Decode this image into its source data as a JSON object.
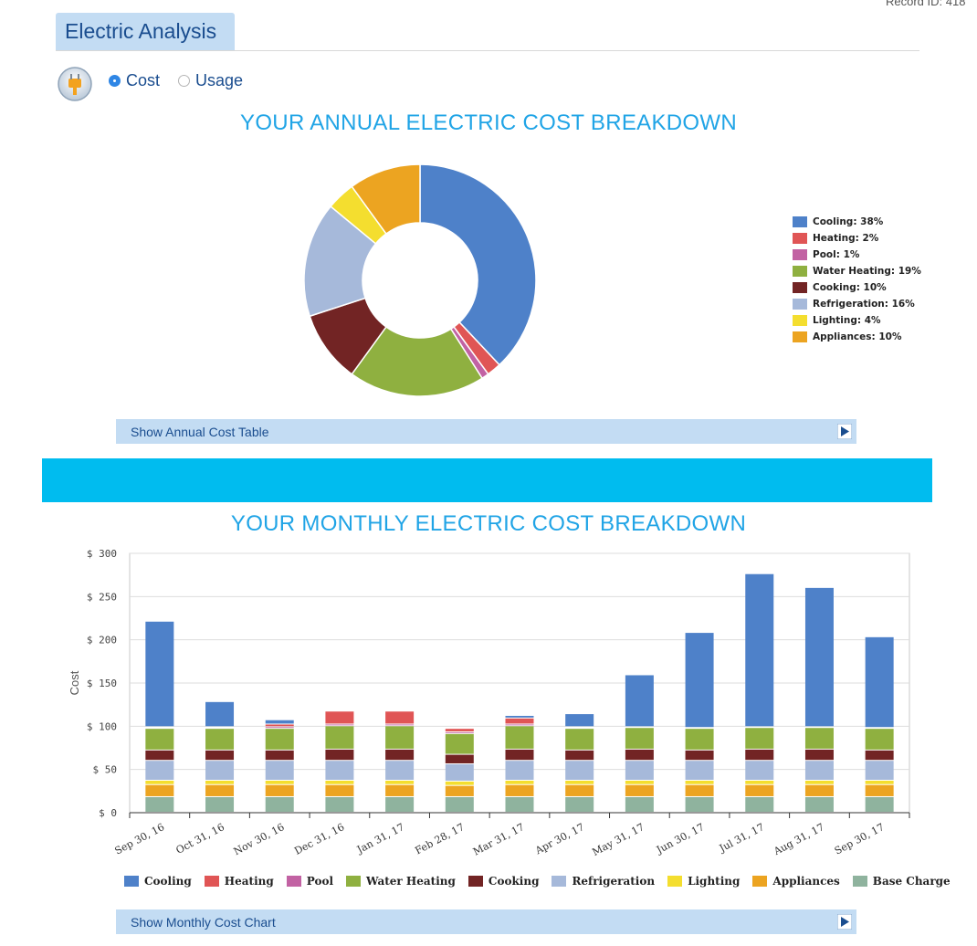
{
  "record_id": "Record ID: 418",
  "header": {
    "title": "Electric Analysis"
  },
  "mode": {
    "options": [
      {
        "label": "Cost",
        "selected": true
      },
      {
        "label": "Usage",
        "selected": false
      }
    ]
  },
  "annual": {
    "title": "YOUR ANNUAL ELECTRIC COST BREAKDOWN",
    "toggle_label": "Show Annual Cost Table"
  },
  "monthly": {
    "title": "YOUR MONTHLY ELECTRIC COST BREAKDOWN",
    "toggle_label": "Show Monthly Cost Chart"
  },
  "icons": {
    "plug": "electric-plug-icon",
    "expand": "play-arrow-icon"
  },
  "chart_data": [
    {
      "type": "pie",
      "title": "YOUR ANNUAL ELECTRIC COST BREAKDOWN",
      "donut": true,
      "legend_position": "right",
      "slices": [
        {
          "name": "Cooling",
          "value": 38,
          "label": "Cooling: 38%",
          "color": "#4e81c9"
        },
        {
          "name": "Heating",
          "value": 2,
          "label": "Heating: 2%",
          "color": "#e05555"
        },
        {
          "name": "Pool",
          "value": 1,
          "label": "Pool: 1%",
          "color": "#c262a3"
        },
        {
          "name": "Water Heating",
          "value": 19,
          "label": "Water Heating: 19%",
          "color": "#8fb040"
        },
        {
          "name": "Cooking",
          "value": 10,
          "label": "Cooking: 10%",
          "color": "#722424"
        },
        {
          "name": "Refrigeration",
          "value": 16,
          "label": "Refrigeration: 16%",
          "color": "#a6b9da"
        },
        {
          "name": "Lighting",
          "value": 4,
          "label": "Lighting: 4%",
          "color": "#f4de2f"
        },
        {
          "name": "Appliances",
          "value": 10,
          "label": "Appliances: 10%",
          "color": "#eca421"
        }
      ]
    },
    {
      "type": "bar",
      "stacked": true,
      "title": "YOUR MONTHLY ELECTRIC COST BREAKDOWN",
      "ylabel": "Cost",
      "ylim": [
        0,
        300
      ],
      "yticks": [
        0,
        50,
        100,
        150,
        200,
        250,
        300
      ],
      "ytick_labels": [
        "$ 0",
        "$ 50",
        "$ 100",
        "$ 150",
        "$ 200",
        "$ 250",
        "$ 300"
      ],
      "grid": true,
      "legend_position": "bottom",
      "categories": [
        "Sep 30, 16",
        "Oct 31, 16",
        "Nov 30, 16",
        "Dec 31, 16",
        "Jan 31, 17",
        "Feb 28, 17",
        "Mar 31, 17",
        "Apr 30, 17",
        "May 31, 17",
        "Jun 30, 17",
        "Jul 31, 17",
        "Aug 31, 17",
        "Sep 30, 17"
      ],
      "series": [
        {
          "name": "Base Charge",
          "color": "#8fb39e",
          "values": [
            18,
            18,
            18,
            18,
            18,
            18,
            18,
            18,
            18,
            18,
            18,
            18,
            18
          ]
        },
        {
          "name": "Appliances",
          "color": "#eca421",
          "values": [
            14,
            14,
            14,
            14,
            14,
            13,
            14,
            14,
            14,
            14,
            14,
            14,
            14
          ]
        },
        {
          "name": "Lighting",
          "color": "#f4de2f",
          "values": [
            5,
            5,
            5,
            5,
            5,
            5,
            5,
            5,
            5,
            5,
            5,
            5,
            5
          ]
        },
        {
          "name": "Refrigeration",
          "color": "#a6b9da",
          "values": [
            23,
            23,
            23,
            23,
            23,
            20,
            23,
            23,
            23,
            23,
            23,
            23,
            23
          ]
        },
        {
          "name": "Cooking",
          "color": "#722424",
          "values": [
            12,
            12,
            12,
            13,
            13,
            11,
            13,
            12,
            13,
            12,
            13,
            13,
            12
          ]
        },
        {
          "name": "Water Heating",
          "color": "#8fb040",
          "values": [
            25,
            25,
            25,
            27,
            27,
            24,
            27,
            25,
            25,
            25,
            25,
            25,
            25
          ]
        },
        {
          "name": "Pool",
          "color": "#c262a3",
          "values": [
            1,
            1,
            2,
            2,
            2,
            2,
            2,
            1,
            1,
            1,
            1,
            1,
            1
          ]
        },
        {
          "name": "Heating",
          "color": "#e05555",
          "values": [
            1,
            1,
            3,
            15,
            15,
            4,
            7,
            1,
            0,
            0,
            0,
            0,
            0
          ]
        },
        {
          "name": "Cooling",
          "color": "#4e81c9",
          "values": [
            122,
            29,
            5,
            1,
            1,
            1,
            3,
            15,
            60,
            110,
            177,
            161,
            105
          ]
        }
      ],
      "legend": [
        "Cooling",
        "Heating",
        "Pool",
        "Water Heating",
        "Cooking",
        "Refrigeration",
        "Lighting",
        "Appliances",
        "Base Charge"
      ]
    }
  ]
}
